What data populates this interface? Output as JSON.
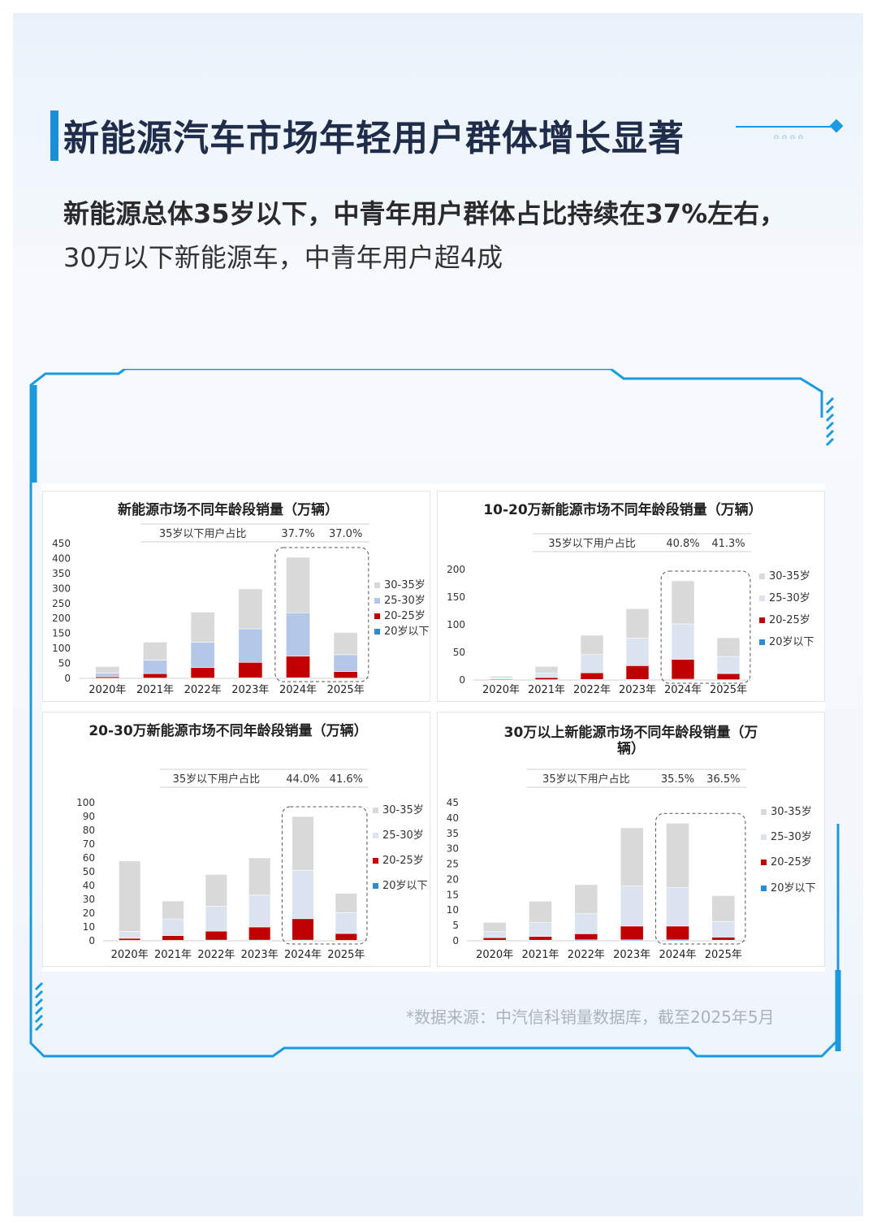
{
  "header": {
    "title": "新能源汽车市场年轻用户群体增长显著",
    "subtitle_line1": "新能源总体35岁以下，中青年用户群体占比持续在37%左右，",
    "subtitle_line2": "30万以下新能源车，中青年用户超4成"
  },
  "footer": {
    "source": "*数据来源：中汽信科销量数据库，截至2025年5月"
  },
  "colors": {
    "s30_35": "#d9d9d9",
    "s25_30_chart1": "#b4c7e7",
    "s25_30": "#dae3ee",
    "s20_25": "#c00000",
    "s_under20": "#2e8bd3",
    "frame": "#1a9be0"
  },
  "chart_data": [
    {
      "type": "bar",
      "stacked": true,
      "title": "新能源市场不同年龄段销量（万辆）",
      "categories": [
        "2020年",
        "2021年",
        "2022年",
        "2023年",
        "2024年",
        "2025年"
      ],
      "ylim": [
        0,
        450
      ],
      "yticks": [
        0,
        50,
        100,
        150,
        200,
        250,
        300,
        350,
        400,
        450
      ],
      "series": [
        {
          "name": "20岁以下",
          "values": [
            0.5,
            1,
            1,
            1.5,
            2,
            1
          ]
        },
        {
          "name": "20-25岁",
          "values": [
            5,
            15,
            35,
            52,
            72,
            22
          ]
        },
        {
          "name": "25-30岁",
          "values": [
            12,
            45,
            85,
            112,
            145,
            56
          ]
        },
        {
          "name": "30-35岁",
          "values": [
            22,
            60,
            100,
            133,
            185,
            74
          ]
        }
      ],
      "annotation": {
        "label": "35岁以下用户占比",
        "values": [
          {
            "category": "2024年",
            "text": "37.7%"
          },
          {
            "category": "2025年",
            "text": "37.0%"
          }
        ]
      },
      "highlight": [
        "2024年",
        "2025年"
      ],
      "legend_position": "right"
    },
    {
      "type": "bar",
      "stacked": true,
      "title": "10-20万新能源市场不同年龄段销量（万辆）",
      "categories": [
        "2020年",
        "2021年",
        "2022年",
        "2023年",
        "2024年",
        "2025年"
      ],
      "ylim": [
        0,
        200
      ],
      "yticks": [
        0,
        50,
        100,
        150,
        200
      ],
      "series": [
        {
          "name": "20岁以下",
          "values": [
            0.3,
            0.5,
            1,
            1,
            1.5,
            0.5
          ]
        },
        {
          "name": "20-25岁",
          "values": [
            1.5,
            4,
            12,
            25,
            36,
            11
          ]
        },
        {
          "name": "25-30岁",
          "values": [
            2,
            8,
            33,
            50,
            64,
            31
          ]
        },
        {
          "name": "30-35岁",
          "values": [
            3,
            12,
            35,
            53,
            78,
            34
          ]
        }
      ],
      "annotation": {
        "label": "35岁以下用户占比",
        "values": [
          {
            "category": "2024年",
            "text": "40.8%"
          },
          {
            "category": "2025年",
            "text": "41.3%"
          }
        ]
      },
      "highlight": [
        "2024年",
        "2025年"
      ],
      "legend_position": "right"
    },
    {
      "type": "bar",
      "stacked": true,
      "title": "20-30万新能源市场不同年龄段销量（万辆）",
      "categories": [
        "2020年",
        "2021年",
        "2022年",
        "2023年",
        "2024年",
        "2025年"
      ],
      "ylim": [
        0,
        100
      ],
      "yticks": [
        0,
        10,
        20,
        30,
        40,
        50,
        60,
        70,
        80,
        90,
        100
      ],
      "series": [
        {
          "name": "20岁以下",
          "values": [
            0.3,
            0.3,
            0.5,
            0.5,
            0.5,
            0.3
          ]
        },
        {
          "name": "20-25岁",
          "values": [
            1.5,
            3.5,
            6.5,
            9.5,
            15.5,
            5
          ]
        },
        {
          "name": "25-30岁",
          "values": [
            5,
            12,
            18,
            23,
            35,
            15
          ]
        },
        {
          "name": "30-35岁",
          "values": [
            51,
            13,
            23,
            27,
            39,
            14
          ]
        }
      ],
      "annotation": {
        "label": "35岁以下用户占比",
        "values": [
          {
            "category": "2024年",
            "text": "44.0%"
          },
          {
            "category": "2025年",
            "text": "41.6%"
          }
        ]
      },
      "highlight": [
        "2024年",
        "2025年"
      ],
      "legend_position": "right"
    },
    {
      "type": "bar",
      "stacked": true,
      "title": "30万以上新能源市场不同年龄段销量（万辆）",
      "categories": [
        "2020年",
        "2021年",
        "2022年",
        "2023年",
        "2024年",
        "2025年"
      ],
      "ylim": [
        0,
        45
      ],
      "yticks": [
        0,
        5,
        10,
        15,
        20,
        25,
        30,
        35,
        40,
        45
      ],
      "series": [
        {
          "name": "20岁以下",
          "values": [
            0.2,
            0.2,
            0.3,
            0.3,
            0.3,
            0.2
          ]
        },
        {
          "name": "20-25岁",
          "values": [
            0.8,
            1.2,
            2,
            4.5,
            4.5,
            1
          ]
        },
        {
          "name": "25-30岁",
          "values": [
            2,
            4.5,
            6.5,
            13,
            12.5,
            5
          ]
        },
        {
          "name": "30-35岁",
          "values": [
            3,
            7,
            9.5,
            19,
            21,
            8.5
          ]
        }
      ],
      "annotation": {
        "label": "35岁以下用户占比",
        "values": [
          {
            "category": "2024年",
            "text": "35.5%"
          },
          {
            "category": "2025年",
            "text": "36.5%"
          }
        ]
      },
      "highlight": [
        "2024年",
        "2025年"
      ],
      "legend_position": "right"
    }
  ]
}
